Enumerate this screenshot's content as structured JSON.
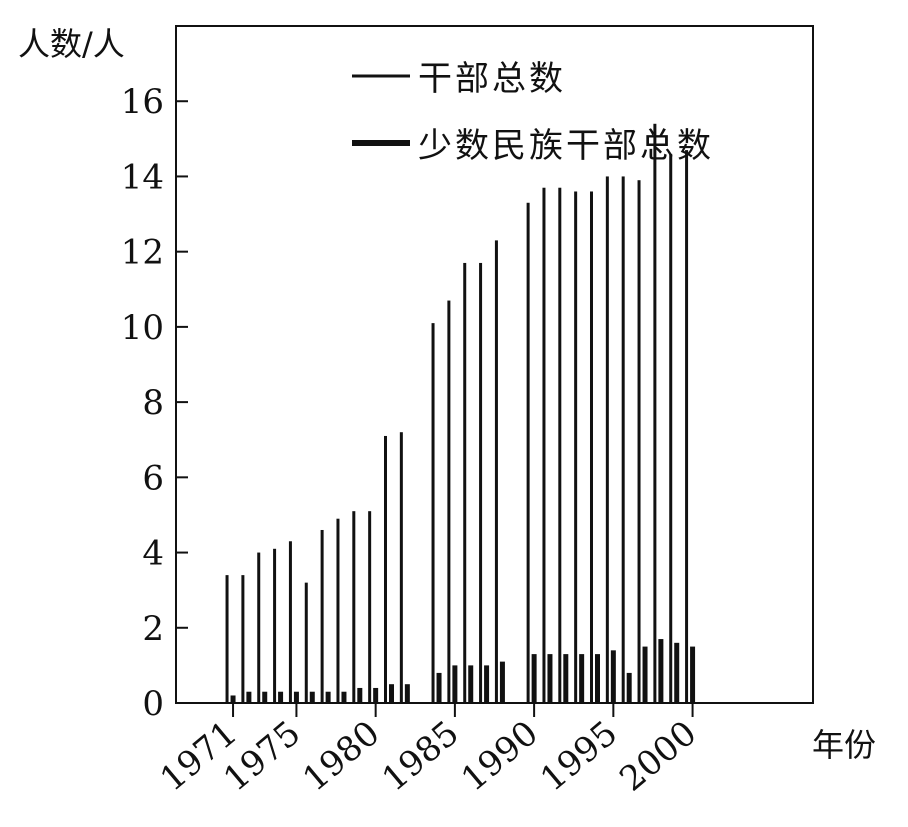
{
  "chart_data": {
    "type": "bar",
    "ylabel": "人数/人",
    "xlabel": "年份",
    "ylim": [
      0,
      18
    ],
    "xlim": [
      1967.4,
      2007.6
    ],
    "yticks": [
      0,
      2,
      4,
      6,
      8,
      10,
      12,
      14,
      16
    ],
    "xticks": [
      1971,
      1975,
      1980,
      1985,
      1990,
      1995,
      2000
    ],
    "legend_position": "top",
    "grid": false,
    "series": [
      {
        "name": "干部总数",
        "x": [
          1971,
          1972,
          1973,
          1974,
          1975,
          1976,
          1977,
          1978,
          1979,
          1980,
          1981,
          1982,
          1984,
          1985,
          1986,
          1987,
          1988,
          1990,
          1991,
          1992,
          1993,
          1994,
          1995,
          1996,
          1997,
          1998,
          1999,
          2000
        ],
        "values": [
          3.4,
          3.4,
          4.0,
          4.1,
          4.3,
          3.2,
          4.6,
          4.9,
          5.1,
          5.1,
          7.1,
          7.2,
          10.1,
          10.7,
          11.7,
          11.7,
          12.3,
          13.3,
          13.7,
          13.7,
          13.6,
          13.6,
          14.0,
          14.0,
          13.9,
          15.4,
          14.6,
          14.7
        ]
      },
      {
        "name": "少数民族干部总数",
        "x": [
          1971,
          1972,
          1973,
          1974,
          1975,
          1976,
          1977,
          1978,
          1979,
          1980,
          1981,
          1982,
          1984,
          1985,
          1986,
          1987,
          1988,
          1990,
          1991,
          1992,
          1993,
          1994,
          1995,
          1996,
          1997,
          1998,
          1999,
          2000
        ],
        "values": [
          0.2,
          0.3,
          0.3,
          0.3,
          0.3,
          0.3,
          0.3,
          0.3,
          0.4,
          0.4,
          0.5,
          0.5,
          0.8,
          1.0,
          1.0,
          1.0,
          1.1,
          1.3,
          1.3,
          1.3,
          1.3,
          1.3,
          1.4,
          0.8,
          1.5,
          1.7,
          1.6,
          1.5
        ]
      }
    ]
  }
}
